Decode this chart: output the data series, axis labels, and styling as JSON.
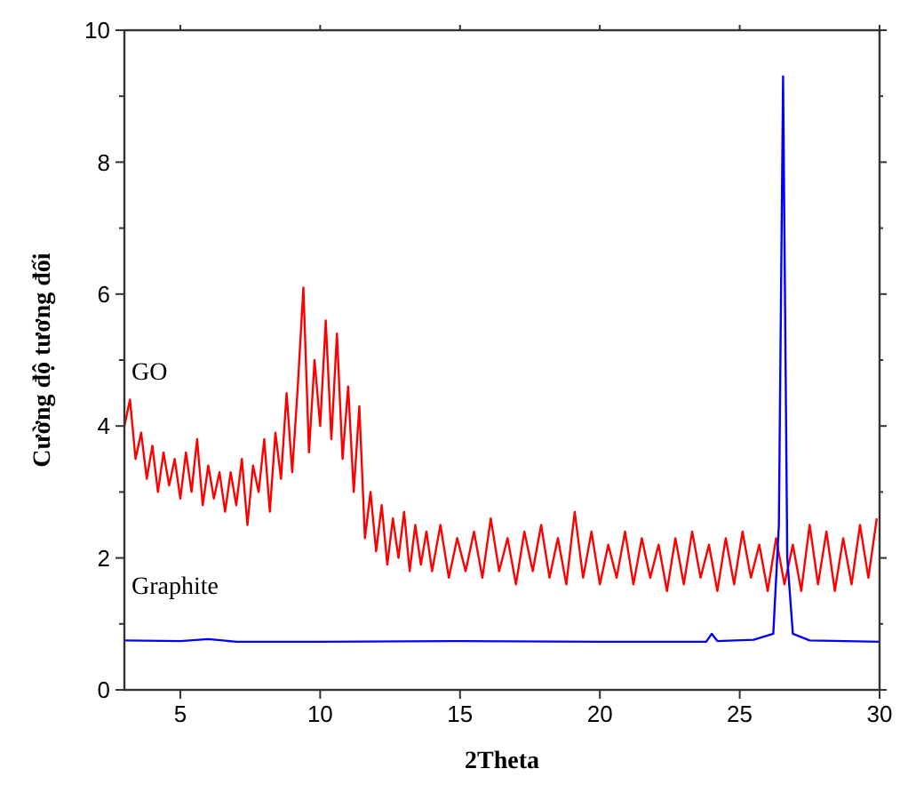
{
  "chart_data": {
    "type": "line",
    "xlabel": "2Theta",
    "ylabel": "Cường độ tương đối",
    "xlim": [
      3,
      30
    ],
    "ylim": [
      0,
      10
    ],
    "xticks": [
      5,
      10,
      15,
      20,
      25,
      30
    ],
    "yticks": [
      0,
      {
        "value": 1,
        "label": null
      },
      2,
      {
        "value": 3,
        "label": null
      },
      4,
      {
        "value": 5,
        "label": null
      },
      6,
      {
        "value": 7,
        "label": null
      },
      8,
      {
        "value": 9,
        "label": null
      },
      10
    ],
    "grid": false,
    "legend": false,
    "marker": "none",
    "line_style": "solid",
    "series": [
      {
        "name": "GO",
        "color": "#ff0000",
        "x": [
          3.0,
          3.2,
          3.4,
          3.6,
          3.8,
          4.0,
          4.2,
          4.4,
          4.6,
          4.8,
          5.0,
          5.2,
          5.4,
          5.6,
          5.8,
          6.0,
          6.2,
          6.4,
          6.6,
          6.8,
          7.0,
          7.2,
          7.4,
          7.6,
          7.8,
          8.0,
          8.2,
          8.4,
          8.6,
          8.8,
          9.0,
          9.2,
          9.4,
          9.6,
          9.8,
          10.0,
          10.2,
          10.4,
          10.6,
          10.8,
          11.0,
          11.2,
          11.4,
          11.6,
          11.8,
          12.0,
          12.2,
          12.4,
          12.6,
          12.8,
          13.0,
          13.2,
          13.4,
          13.6,
          13.8,
          14.0,
          14.3,
          14.6,
          14.9,
          15.2,
          15.5,
          15.8,
          16.1,
          16.4,
          16.7,
          17.0,
          17.3,
          17.6,
          17.9,
          18.2,
          18.5,
          18.8,
          19.1,
          19.4,
          19.7,
          20.0,
          20.3,
          20.6,
          20.9,
          21.2,
          21.5,
          21.8,
          22.1,
          22.4,
          22.7,
          23.0,
          23.3,
          23.6,
          23.9,
          24.2,
          24.5,
          24.8,
          25.1,
          25.4,
          25.7,
          26.0,
          26.3,
          26.6,
          26.9,
          27.2,
          27.5,
          27.8,
          28.1,
          28.4,
          28.7,
          29.0,
          29.3,
          29.6,
          29.9
        ],
        "values": [
          4.0,
          4.4,
          3.5,
          3.9,
          3.2,
          3.7,
          3.0,
          3.6,
          3.1,
          3.5,
          2.9,
          3.6,
          3.0,
          3.8,
          2.8,
          3.4,
          2.9,
          3.3,
          2.7,
          3.3,
          2.8,
          3.5,
          2.5,
          3.4,
          3.0,
          3.8,
          2.7,
          3.9,
          3.2,
          4.5,
          3.3,
          4.6,
          6.1,
          3.6,
          5.0,
          4.0,
          5.6,
          3.8,
          5.4,
          3.5,
          4.6,
          3.0,
          4.3,
          2.3,
          3.0,
          2.1,
          2.8,
          1.9,
          2.6,
          2.0,
          2.7,
          1.8,
          2.5,
          1.9,
          2.4,
          1.8,
          2.5,
          1.7,
          2.3,
          1.8,
          2.4,
          1.7,
          2.6,
          1.8,
          2.3,
          1.6,
          2.4,
          1.8,
          2.5,
          1.7,
          2.3,
          1.6,
          2.7,
          1.7,
          2.4,
          1.6,
          2.2,
          1.7,
          2.4,
          1.6,
          2.3,
          1.7,
          2.2,
          1.5,
          2.3,
          1.6,
          2.4,
          1.7,
          2.2,
          1.5,
          2.3,
          1.6,
          2.4,
          1.7,
          2.2,
          1.5,
          2.3,
          1.6,
          2.2,
          1.5,
          2.5,
          1.6,
          2.4,
          1.5,
          2.3,
          1.6,
          2.5,
          1.7,
          2.6
        ]
      },
      {
        "name": "Graphite",
        "color": "#0000ff",
        "x": [
          3,
          5,
          6,
          7,
          10,
          15,
          20,
          23.8,
          24.0,
          24.2,
          25.5,
          26.2,
          26.4,
          26.55,
          26.7,
          26.9,
          27.5,
          30
        ],
        "values": [
          0.75,
          0.74,
          0.77,
          0.73,
          0.73,
          0.74,
          0.73,
          0.73,
          0.85,
          0.74,
          0.76,
          0.85,
          2.5,
          9.3,
          2.0,
          0.85,
          0.75,
          0.73
        ]
      }
    ]
  }
}
